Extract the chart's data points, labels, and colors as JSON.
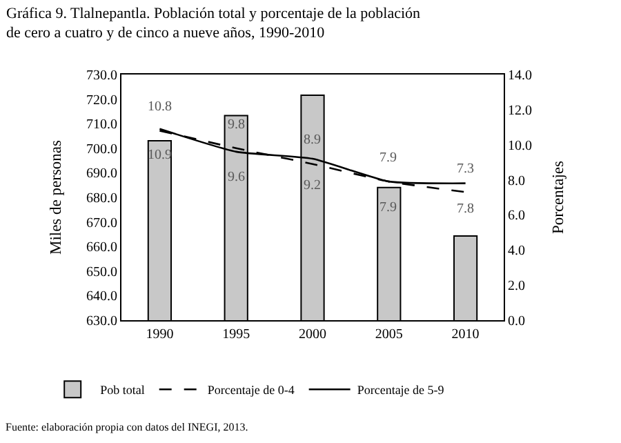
{
  "chart_data": {
    "type": "bar",
    "title": "Gráfica 9. Tlalnepantla. Población total y porcentaje de la población\nde cero a cuatro y de cinco a nueve años, 1990-2010",
    "categories": [
      "1990",
      "1995",
      "2000",
      "2005",
      "2010"
    ],
    "series": [
      {
        "name": "Pob total",
        "color": "#c8c8c8",
        "values": [
          703.0,
          713.3,
          721.6,
          684.0,
          664.3
        ]
      },
      {
        "name": "Porcentaje de 0-4",
        "type": "line",
        "axis": "y2",
        "color": "#000000",
        "line_style": "dashed",
        "values": [
          10.8,
          9.8,
          8.9,
          7.9,
          7.3
        ],
        "value_labels": [
          "10.8",
          "9.8",
          "8.9",
          "7.9",
          "7.3"
        ]
      },
      {
        "name": "Porcentaje de 5-9",
        "type": "line",
        "axis": "y2",
        "color": "#000000",
        "line_style": "solid",
        "values": [
          10.9,
          9.6,
          9.2,
          7.9,
          7.8
        ],
        "value_labels": [
          "10.9",
          "9.6",
          "9.2",
          "7.9",
          "7.8"
        ]
      }
    ],
    "ylabel": "Miles de personas",
    "y2label": "Porcentajes",
    "ylim": [
      630,
      730
    ],
    "yticks": [
      {
        "value": 630,
        "label": "630.0"
      },
      {
        "value": 640,
        "label": "640.0"
      },
      {
        "value": 650,
        "label": "650.0"
      },
      {
        "value": 660,
        "label": "660.0"
      },
      {
        "value": 670,
        "label": "670.0"
      },
      {
        "value": 680,
        "label": "680.0"
      },
      {
        "value": 690,
        "label": "690.0"
      },
      {
        "value": 700,
        "label": "700.0"
      },
      {
        "value": 710,
        "label": "710.0"
      },
      {
        "value": 720,
        "label": "720.0"
      },
      {
        "value": 730,
        "label": "730.0"
      }
    ],
    "y2lim": [
      0,
      14
    ],
    "y2ticks": [
      {
        "value": 0,
        "label": "0.0"
      },
      {
        "value": 2,
        "label": "2.0"
      },
      {
        "value": 4,
        "label": "4.0"
      },
      {
        "value": 6,
        "label": "6.0"
      },
      {
        "value": 8,
        "label": "8.0"
      },
      {
        "value": 10,
        "label": "10.0"
      },
      {
        "value": 12,
        "label": "12.0"
      },
      {
        "value": 14,
        "label": "14.0"
      }
    ],
    "legend": "bottom",
    "marker": "none",
    "annotations": [
      "Fuente: elaboración propia con datos del INEGI, 2013."
    ]
  }
}
